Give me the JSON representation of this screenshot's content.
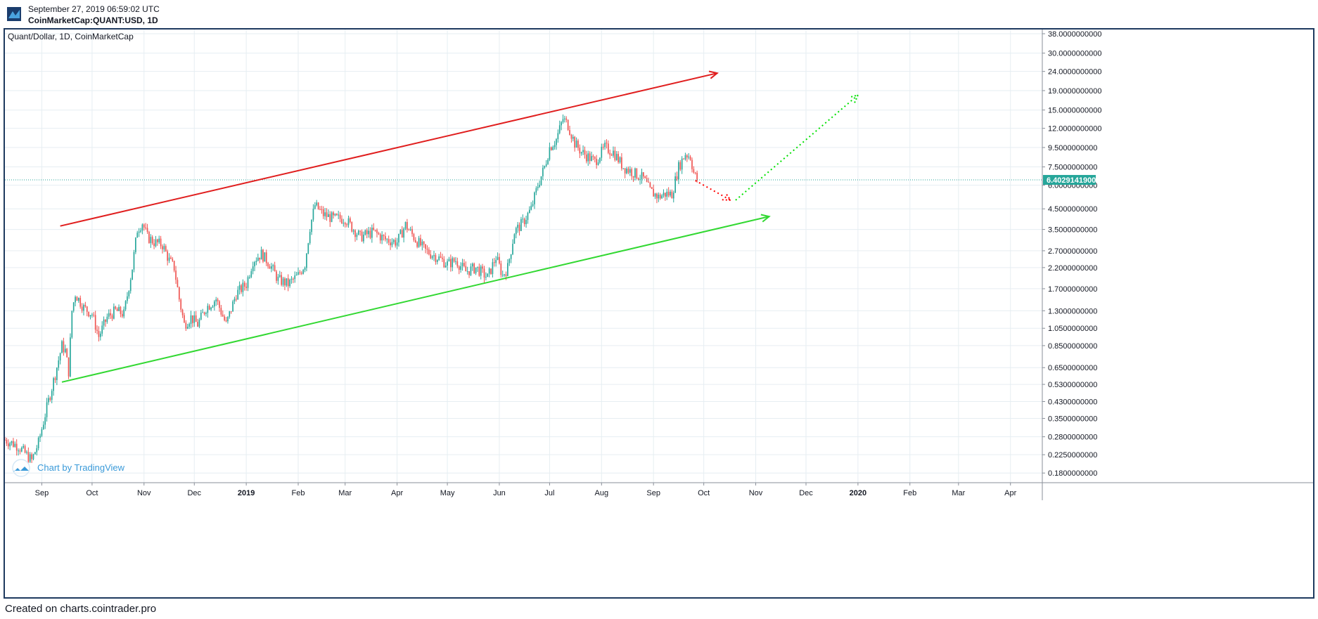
{
  "header": {
    "date": "September 27, 2019 06:59:02 UTC",
    "symbol": "CoinMarketCap:QUANT:USD, 1D"
  },
  "chart_data": {
    "type": "candlestick",
    "title": "Quant/Dollar, 1D, CoinMarketCap",
    "y_scale": "log",
    "ylim": [
      0.16,
      40
    ],
    "y_ticks": [
      "38.0000000000",
      "30.0000000000",
      "24.0000000000",
      "19.0000000000",
      "15.0000000000",
      "12.0000000000",
      "9.5000000000",
      "7.5000000000",
      "6.0000000000",
      "4.5000000000",
      "3.5000000000",
      "2.7000000000",
      "2.2000000000",
      "1.7000000000",
      "1.3000000000",
      "1.0500000000",
      "0.8500000000",
      "0.6500000000",
      "0.5300000000",
      "0.4300000000",
      "0.3500000000",
      "0.2800000000",
      "0.2250000000",
      "0.1800000000"
    ],
    "x_ticks": [
      {
        "label": "Sep",
        "date": "2018-09-01",
        "bold": false
      },
      {
        "label": "Oct",
        "date": "2018-10-01",
        "bold": false
      },
      {
        "label": "Nov",
        "date": "2018-11-01",
        "bold": false
      },
      {
        "label": "Dec",
        "date": "2018-12-01",
        "bold": false
      },
      {
        "label": "2019",
        "date": "2019-01-01",
        "bold": true
      },
      {
        "label": "Feb",
        "date": "2019-02-01",
        "bold": false
      },
      {
        "label": "Mar",
        "date": "2019-03-01",
        "bold": false
      },
      {
        "label": "Apr",
        "date": "2019-04-01",
        "bold": false
      },
      {
        "label": "May",
        "date": "2019-05-01",
        "bold": false
      },
      {
        "label": "Jun",
        "date": "2019-06-01",
        "bold": false
      },
      {
        "label": "Jul",
        "date": "2019-07-01",
        "bold": false
      },
      {
        "label": "Aug",
        "date": "2019-08-01",
        "bold": false
      },
      {
        "label": "Sep",
        "date": "2019-09-01",
        "bold": false
      },
      {
        "label": "Oct",
        "date": "2019-10-01",
        "bold": false
      },
      {
        "label": "Nov",
        "date": "2019-11-01",
        "bold": false
      },
      {
        "label": "Dec",
        "date": "2019-12-01",
        "bold": false
      },
      {
        "label": "2020",
        "date": "2020-01-01",
        "bold": true
      },
      {
        "label": "Feb",
        "date": "2020-02-01",
        "bold": false
      },
      {
        "label": "Mar",
        "date": "2020-03-01",
        "bold": false
      },
      {
        "label": "Apr",
        "date": "2020-04-01",
        "bold": false
      }
    ],
    "xlim": [
      "2018-08-10",
      "2020-04-20"
    ],
    "price_path": [
      [
        "2018-08-10",
        0.27
      ],
      [
        "2018-08-18",
        0.25
      ],
      [
        "2018-08-26",
        0.21
      ],
      [
        "2018-08-30",
        0.26
      ],
      [
        "2018-09-04",
        0.4
      ],
      [
        "2018-09-09",
        0.6
      ],
      [
        "2018-09-13",
        0.85
      ],
      [
        "2018-09-15",
        0.8
      ],
      [
        "2018-09-17",
        0.62
      ],
      [
        "2018-09-19",
        1.3
      ],
      [
        "2018-09-21",
        1.6
      ],
      [
        "2018-09-26",
        1.35
      ],
      [
        "2018-10-01",
        1.25
      ],
      [
        "2018-10-05",
        0.95
      ],
      [
        "2018-10-10",
        1.2
      ],
      [
        "2018-10-15",
        1.3
      ],
      [
        "2018-10-20",
        1.25
      ],
      [
        "2018-10-25",
        2.2
      ],
      [
        "2018-10-28",
        3.5
      ],
      [
        "2018-10-31",
        3.8
      ],
      [
        "2018-11-03",
        3.2
      ],
      [
        "2018-11-07",
        3.0
      ],
      [
        "2018-11-12",
        2.9
      ],
      [
        "2018-11-16",
        2.4
      ],
      [
        "2018-11-19",
        2.2
      ],
      [
        "2018-11-22",
        1.5
      ],
      [
        "2018-11-25",
        1.1
      ],
      [
        "2018-11-29",
        1.2
      ],
      [
        "2018-12-03",
        1.1
      ],
      [
        "2018-12-08",
        1.35
      ],
      [
        "2018-12-14",
        1.5
      ],
      [
        "2018-12-20",
        1.1
      ],
      [
        "2018-12-26",
        1.6
      ],
      [
        "2019-01-01",
        1.8
      ],
      [
        "2019-01-05",
        2.4
      ],
      [
        "2019-01-10",
        2.6
      ],
      [
        "2019-01-15",
        2.3
      ],
      [
        "2019-01-20",
        1.9
      ],
      [
        "2019-01-26",
        1.8
      ],
      [
        "2019-02-01",
        2.0
      ],
      [
        "2019-02-05",
        2.3
      ],
      [
        "2019-02-08",
        3.6
      ],
      [
        "2019-02-11",
        4.7
      ],
      [
        "2019-02-16",
        4.2
      ],
      [
        "2019-02-22",
        4.0
      ],
      [
        "2019-03-01",
        4.0
      ],
      [
        "2019-03-05",
        3.6
      ],
      [
        "2019-03-10",
        3.2
      ],
      [
        "2019-03-18",
        3.4
      ],
      [
        "2019-03-25",
        3.1
      ],
      [
        "2019-04-01",
        3.0
      ],
      [
        "2019-04-06",
        3.7
      ],
      [
        "2019-04-12",
        3.1
      ],
      [
        "2019-04-18",
        2.7
      ],
      [
        "2019-04-25",
        2.5
      ],
      [
        "2019-05-01",
        2.3
      ],
      [
        "2019-05-06",
        2.4
      ],
      [
        "2019-05-12",
        2.1
      ],
      [
        "2019-05-18",
        2.2
      ],
      [
        "2019-05-25",
        1.95
      ],
      [
        "2019-05-30",
        2.5
      ],
      [
        "2019-06-03",
        2.0
      ],
      [
        "2019-06-06",
        2.2
      ],
      [
        "2019-06-10",
        3.4
      ],
      [
        "2019-06-15",
        3.8
      ],
      [
        "2019-06-20",
        4.5
      ],
      [
        "2019-06-24",
        6.0
      ],
      [
        "2019-06-28",
        7.5
      ],
      [
        "2019-07-01",
        9.5
      ],
      [
        "2019-07-05",
        10.5
      ],
      [
        "2019-07-09",
        13.5
      ],
      [
        "2019-07-12",
        12.5
      ],
      [
        "2019-07-16",
        10.0
      ],
      [
        "2019-07-20",
        9.0
      ],
      [
        "2019-07-28",
        8.0
      ],
      [
        "2019-08-03",
        9.5
      ],
      [
        "2019-08-08",
        9.0
      ],
      [
        "2019-08-14",
        7.5
      ],
      [
        "2019-08-20",
        7.0
      ],
      [
        "2019-08-26",
        6.5
      ],
      [
        "2019-08-30",
        5.6
      ],
      [
        "2019-09-04",
        5.2
      ],
      [
        "2019-09-08",
        5.4
      ],
      [
        "2019-09-12",
        5.4
      ],
      [
        "2019-09-16",
        7.5
      ],
      [
        "2019-09-20",
        8.8
      ],
      [
        "2019-09-23",
        8.5
      ],
      [
        "2019-09-25",
        7.0
      ],
      [
        "2019-09-27",
        6.4
      ]
    ],
    "current_price": "6.4029141900",
    "current_price_value": 6.40291419,
    "annotations": [
      {
        "kind": "arrow-line",
        "color": "#e01e1e",
        "from": [
          "2018-09-12",
          3.65
        ],
        "to": [
          "2019-10-09",
          23.5
        ]
      },
      {
        "kind": "arrow-line",
        "color": "#32d832",
        "from": [
          "2018-09-13",
          0.545
        ],
        "to": [
          "2019-11-09",
          4.1
        ]
      },
      {
        "kind": "dotted-arrow",
        "color": "#ff0000",
        "from": [
          "2019-09-26",
          6.35
        ],
        "to": [
          "2019-10-17",
          5.0
        ]
      },
      {
        "kind": "dotted-arrow",
        "color": "#00e000",
        "from": [
          "2019-10-20",
          5.0
        ],
        "to": [
          "2020-01-01",
          18.0
        ]
      }
    ],
    "watermark": "Chart by TradingView"
  },
  "footer": {
    "text": "Created on charts.cointrader.pro"
  },
  "colors": {
    "up": "#26a69a",
    "down": "#ef5350",
    "grid": "#e6eef2",
    "frame": "#1e3a5f",
    "price_tag": "#26a69a"
  }
}
